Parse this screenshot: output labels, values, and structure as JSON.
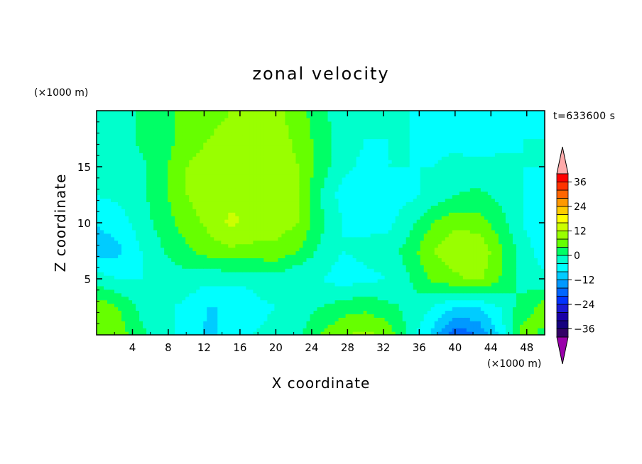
{
  "chart_data": {
    "type": "heatmap",
    "title": "zonal velocity",
    "xlabel": "X coordinate",
    "ylabel": "Z coordinate",
    "x_unit": "(×1000 m)",
    "y_unit": "(×1000 m)",
    "time_label": "t=633600 s",
    "xlim": [
      0,
      50
    ],
    "ylim": [
      0,
      20
    ],
    "x_ticks": [
      4,
      8,
      12,
      16,
      20,
      24,
      28,
      32,
      36,
      40,
      44,
      48
    ],
    "y_ticks": [
      5,
      10,
      15
    ],
    "colorbar": {
      "levels": [
        -40,
        -36,
        -32,
        -28,
        -24,
        -20,
        -16,
        -12,
        -8,
        -4,
        0,
        4,
        8,
        12,
        16,
        20,
        24,
        28,
        32,
        36,
        40
      ],
      "colors": [
        "#330066",
        "#16007f",
        "#1a00a6",
        "#1a1ad4",
        "#0033ff",
        "#0066ff",
        "#0099ff",
        "#00ccff",
        "#00ffff",
        "#00ffcc",
        "#00ff66",
        "#66ff00",
        "#99ff00",
        "#ccff00",
        "#ffff00",
        "#ffcc00",
        "#ff9900",
        "#ff6600",
        "#ff3300",
        "#ff0000"
      ],
      "under_color": "#9900aa",
      "over_color": "#ffaaaa",
      "tick_labels": [
        "36",
        "24",
        "12",
        "0",
        "−12",
        "−24",
        "−36"
      ],
      "tick_values": [
        36,
        24,
        12,
        0,
        -12,
        -24,
        -36
      ]
    },
    "field": {
      "description_values_m_per_s": "approximate zonal velocity field sampled on a grid",
      "x": [
        0,
        2.5,
        5,
        7.5,
        10,
        12.5,
        15,
        17.5,
        20,
        22.5,
        25,
        27.5,
        30,
        32.5,
        35,
        37.5,
        40,
        42.5,
        45,
        47.5,
        50
      ],
      "z": [
        0,
        2.5,
        5,
        7.5,
        10,
        12.5,
        15,
        17.5,
        20
      ],
      "values": [
        [
          6,
          6,
          1,
          -2,
          -6,
          -9,
          -6,
          -4,
          -3,
          -1,
          4,
          8,
          9,
          7,
          -2,
          -9,
          -20,
          -16,
          -7,
          6,
          3
        ],
        [
          7,
          4,
          -1,
          -3,
          -5,
          -8,
          -8,
          -5,
          -4,
          -2,
          0,
          2,
          3,
          1,
          -1,
          -4,
          -8,
          -8,
          -4,
          2,
          6
        ],
        [
          -2,
          -4,
          -4,
          -2,
          -2,
          -3,
          -3,
          -3,
          -2,
          -4,
          -4,
          -6,
          -5,
          -4,
          0,
          5,
          7,
          9,
          4,
          -2,
          -3
        ],
        [
          -10,
          -9,
          -4,
          0,
          3,
          6,
          7,
          7,
          7,
          4,
          -1,
          -4,
          -3,
          -2,
          2,
          8,
          11,
          12,
          5,
          -2,
          -6
        ],
        [
          -8,
          -6,
          -2,
          2,
          6,
          9,
          13,
          10,
          10,
          8,
          1,
          -4,
          -5,
          -5,
          -1,
          4,
          7,
          6,
          2,
          -4,
          -7
        ],
        [
          -4,
          -3,
          -1,
          3,
          8,
          10,
          11,
          12,
          11,
          8,
          0,
          -6,
          -6,
          -6,
          -5,
          -3,
          0,
          1,
          -1,
          -4,
          -6
        ],
        [
          -2,
          -2,
          -1,
          3,
          8,
          10,
          10,
          11,
          10,
          8,
          2,
          -3,
          -5,
          -4,
          -4,
          -4,
          -3,
          -3,
          -3,
          -4,
          -4
        ],
        [
          -2,
          -2,
          1,
          2,
          6,
          8,
          9,
          10,
          10,
          7,
          2,
          -2,
          -4,
          -4,
          -4,
          -5,
          -5,
          -6,
          -5,
          -4,
          -4
        ],
        [
          -2,
          -2,
          1,
          3,
          5,
          7,
          8,
          9,
          9,
          6,
          1,
          -2,
          -3,
          -3,
          -4,
          -5,
          -6,
          -7,
          -7,
          -5,
          -4
        ]
      ]
    }
  }
}
